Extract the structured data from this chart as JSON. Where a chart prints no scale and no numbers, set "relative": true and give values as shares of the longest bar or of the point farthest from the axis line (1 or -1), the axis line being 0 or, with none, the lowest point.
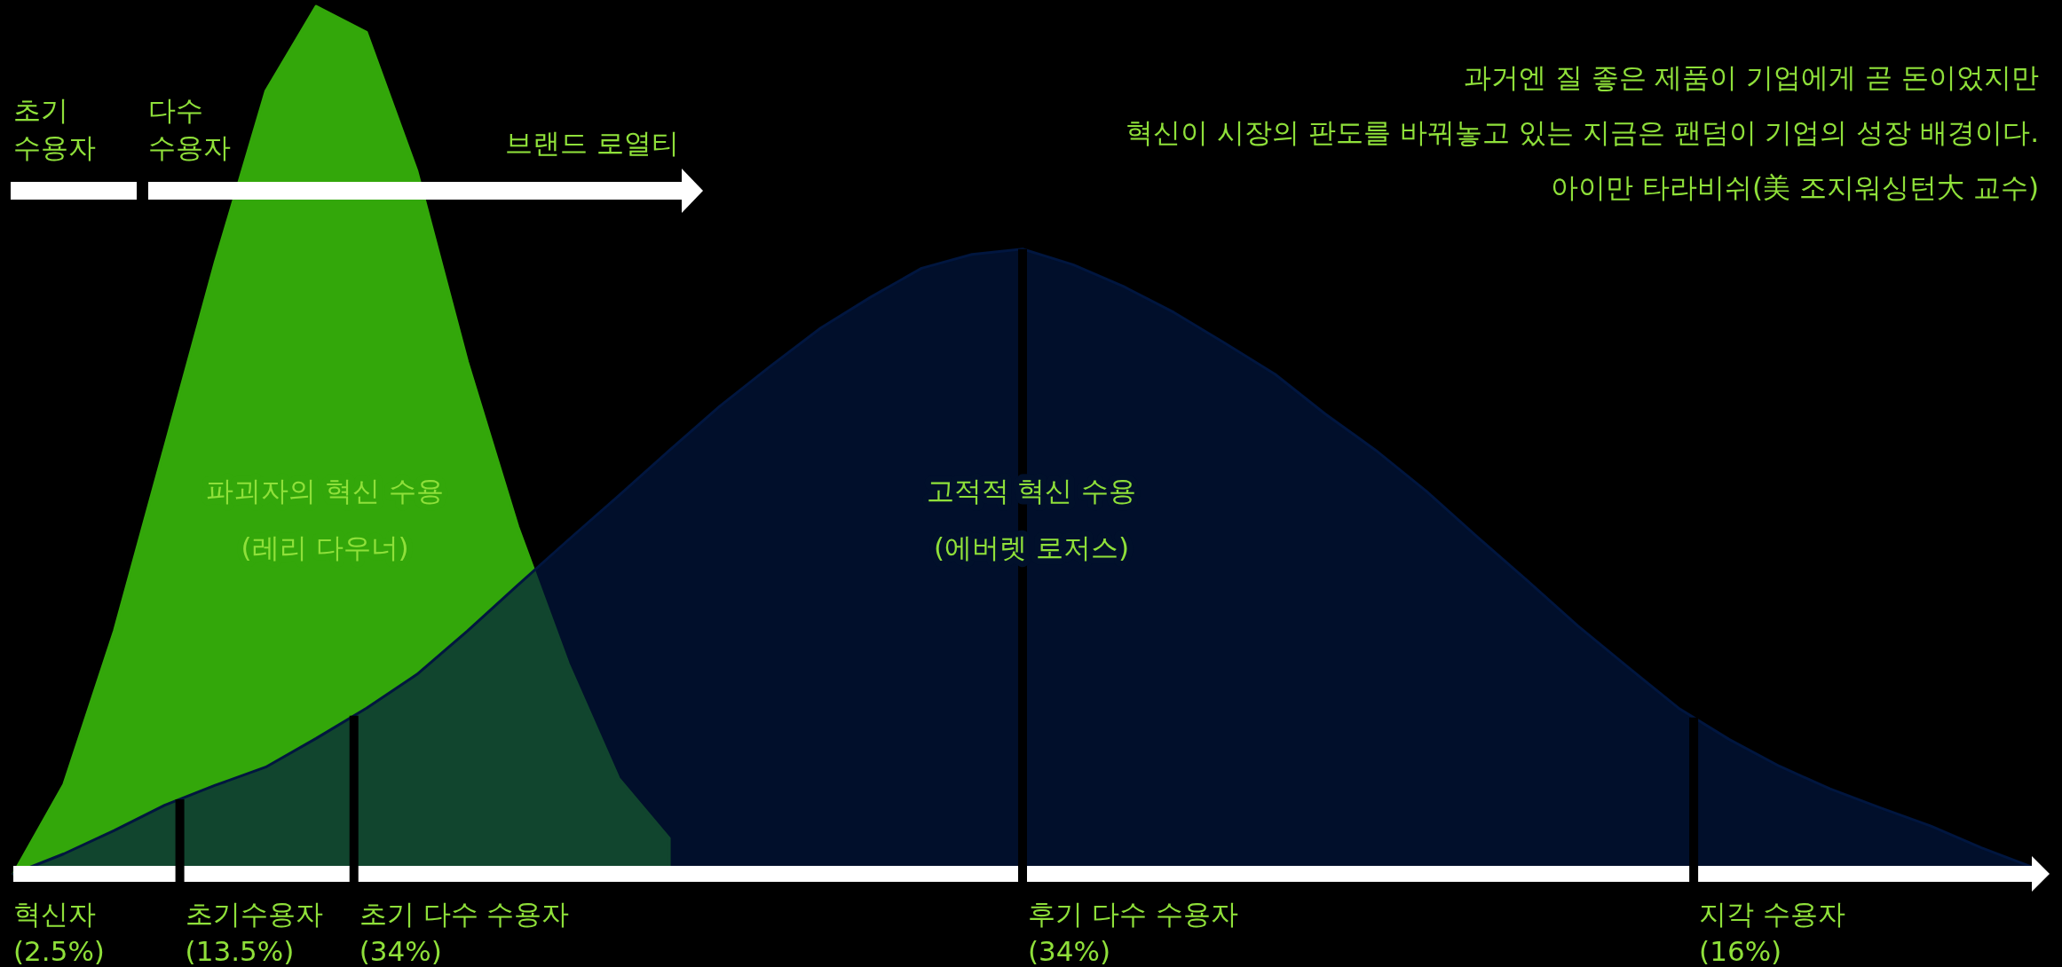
{
  "chart_data": {
    "type": "area",
    "relative": true,
    "tick_labels": false,
    "legend": false,
    "categories": [
      null,
      null,
      null,
      null,
      null,
      null,
      null,
      null,
      null,
      null,
      null,
      null,
      null,
      null,
      null,
      null,
      null,
      null,
      null,
      null,
      null,
      null,
      null,
      null,
      null,
      null,
      null,
      null,
      null,
      null,
      null,
      null,
      null,
      null,
      null,
      null,
      null,
      null,
      null,
      null,
      null
    ],
    "series": [
      {
        "name": "파괴자의 혁신 수용\n(레리 다우너)",
        "color": "#33a70a",
        "values": [
          0,
          0.103,
          0.28,
          0.492,
          0.705,
          0.902,
          1,
          0.97,
          0.81,
          0.59,
          0.4,
          0.242,
          0.11,
          0.041,
          null,
          null,
          null,
          null,
          null,
          null,
          null,
          null,
          null,
          null,
          null,
          null,
          null,
          null,
          null,
          null,
          null,
          null,
          null,
          null,
          null,
          null,
          null,
          null,
          null,
          null,
          null
        ]
      },
      {
        "name": "고적적 혁신 수용\n(에버렛 로저스)",
        "color": "#01163f",
        "values": [
          0,
          0.023,
          0.05,
          0.079,
          0.102,
          0.123,
          0.156,
          0.191,
          0.23,
          0.28,
          0.333,
          0.385,
          0.436,
          0.488,
          0.539,
          0.585,
          0.629,
          0.665,
          0.698,
          0.714,
          0.72,
          0.702,
          0.677,
          0.647,
          0.612,
          0.576,
          0.53,
          0.488,
          0.441,
          0.389,
          0.338,
          0.286,
          0.238,
          0.191,
          0.155,
          0.124,
          0.098,
          0.076,
          0.055,
          0.03,
          0.008
        ]
      }
    ],
    "annotations": [
      "초기\n수용자",
      "다수\n수용자",
      "브랜드 로열티",
      "과거엔 질 좋은 제품이 기업에게 곧 돈이었지만",
      "혁신이 시장의 판도를 바꿔놓고 있는 지금은 팬덤이 기업의 성장 배경이다.",
      "아이만 타라비쉬(美 조지워싱턴大 교수)",
      "혁신자\n(2.5%)",
      "초기수용자\n(13.5%)",
      "초기 다수 수용자\n(34%)",
      "후기 다수 수용자\n(34%)",
      "지각 수용자\n(16%)"
    ]
  }
}
